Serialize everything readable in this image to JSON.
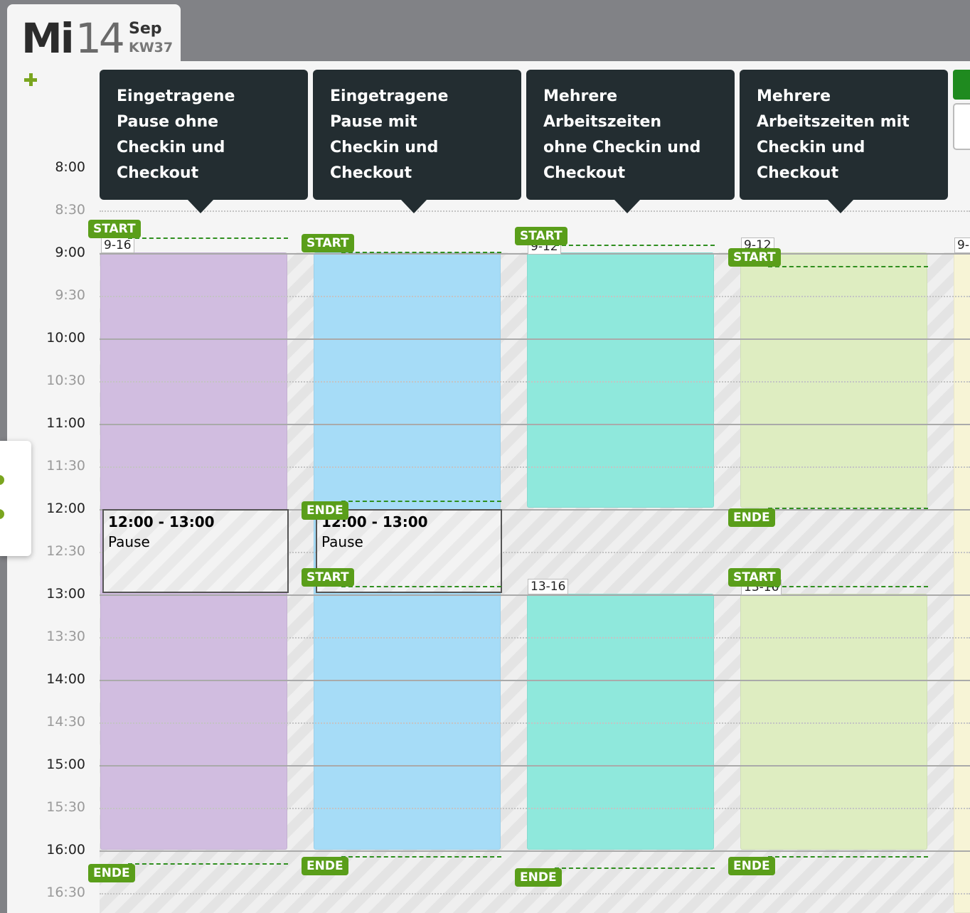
{
  "header": {
    "weekday": "Mi",
    "day": "14",
    "month": "Sep",
    "week": "KW37"
  },
  "time_labels": [
    "8:00",
    "8:30",
    "9:00",
    "9:30",
    "10:00",
    "10:30",
    "11:00",
    "11:30",
    "12:00",
    "12:30",
    "13:00",
    "13:30",
    "14:00",
    "14:30",
    "15:00",
    "15:30",
    "16:00",
    "16:30"
  ],
  "columns": [
    {
      "tooltip": [
        "Eingetragene",
        "Pause ohne",
        "Checkin und",
        "Checkout"
      ],
      "shift_labels": [
        "9-16"
      ],
      "markers": [
        "START",
        "ENDE"
      ],
      "pause": {
        "time": "12:00 - 13:00",
        "label": "Pause"
      }
    },
    {
      "tooltip": [
        "Eingetragene",
        "Pause mit",
        "Checkin und",
        "Checkout"
      ],
      "shift_labels": [],
      "markers": [
        "START",
        "ENDE",
        "START",
        "ENDE"
      ],
      "pause": {
        "time": "12:00 - 13:00",
        "label": "Pause"
      }
    },
    {
      "tooltip": [
        "Mehrere",
        "Arbeitszeiten",
        "ohne Checkin und",
        "Checkout"
      ],
      "shift_labels": [
        "9-12",
        "13-16"
      ],
      "markers": [
        "START",
        "ENDE"
      ]
    },
    {
      "tooltip": [
        "Mehrere",
        "Arbeitszeiten mit",
        "Checkin und",
        "Checkout"
      ],
      "shift_labels": [
        "9-12",
        "13-16"
      ],
      "markers": [
        "START",
        "ENDE",
        "START",
        "ENDE"
      ]
    },
    {
      "shift_labels": [
        "9-"
      ]
    }
  ]
}
